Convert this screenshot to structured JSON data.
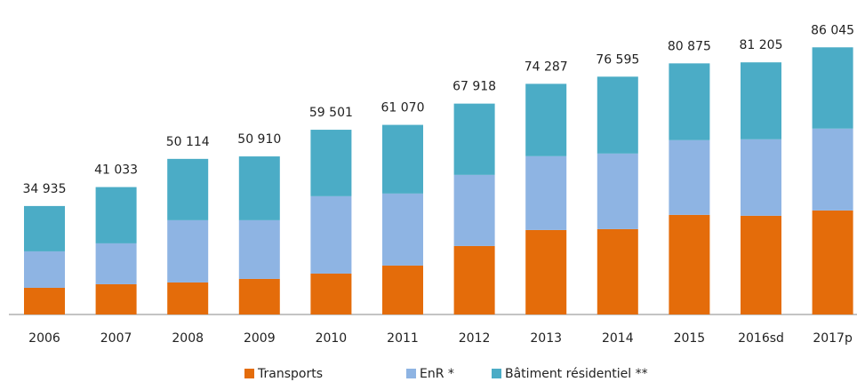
{
  "chart_data": {
    "type": "stacked_bar",
    "categories": [
      "2006",
      "2007",
      "2008",
      "2009",
      "2010",
      "2011",
      "2012",
      "2013",
      "2014",
      "2015",
      "2016sd",
      "2017p"
    ],
    "series": [
      {
        "name": "Transports",
        "color": "#e46c0a",
        "values": [
          8590,
          9740,
          10310,
          11460,
          13170,
          15750,
          22050,
          27210,
          27490,
          32080,
          31790,
          33510
        ]
      },
      {
        "name": "EnR *",
        "color": "#8eb4e3",
        "values": [
          11740,
          13170,
          20050,
          18900,
          24920,
          23200,
          22910,
          23770,
          24340,
          24060,
          24630,
          26350
        ]
      },
      {
        "name": "Bâtiment résidentiel **",
        "color": "#4bacc6",
        "values": [
          14605,
          18123,
          19754,
          20550,
          21411,
          22120,
          22958,
          23307,
          24765,
          24735,
          24785,
          26185
        ]
      }
    ],
    "totals": {
      "values": [
        34935,
        41033,
        50114,
        50910,
        59501,
        61070,
        67918,
        74287,
        76595,
        80875,
        81205,
        86045
      ],
      "value_labels": [
        "34 935",
        "41 033",
        "50 114",
        "50 910",
        "59 501",
        "61 070",
        "67 918",
        "74 287",
        "76 595",
        "80 875",
        "81 205",
        "86 045"
      ]
    }
  }
}
